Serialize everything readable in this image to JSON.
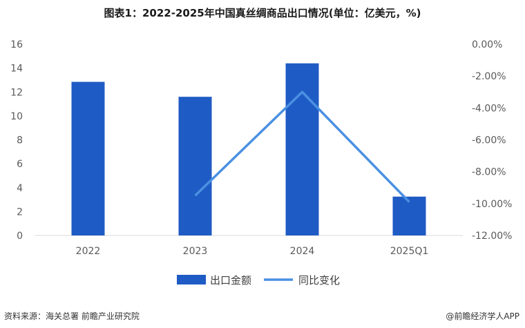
{
  "chart_data": {
    "type": "bar",
    "title": "图表1：2022-2025年中国真丝绸商品出口情况(单位：亿美元，%)",
    "categories": [
      "2022",
      "2023",
      "2024",
      "2025Q1"
    ],
    "series": [
      {
        "name": "出口金额",
        "type": "bar",
        "axis": "left",
        "values": [
          12.85,
          11.6,
          14.4,
          3.25
        ],
        "color": "#1f5bc4"
      },
      {
        "name": "同比变化",
        "type": "line",
        "axis": "right",
        "values": [
          null,
          -9.5,
          -3.0,
          -9.9
        ],
        "color": "#4a90e2"
      }
    ],
    "y_left": {
      "ylim": [
        0,
        16
      ],
      "ticks": [
        "0",
        "2",
        "4",
        "6",
        "8",
        "10",
        "12",
        "14",
        "16"
      ]
    },
    "y_right": {
      "ylim": [
        -12,
        0
      ],
      "ticks": [
        "-12.00%",
        "-10.00%",
        "-8.00%",
        "-6.00%",
        "-4.00%",
        "-2.00%",
        "0.00%"
      ]
    },
    "legend_position": "bottom-center",
    "grid": false
  },
  "footer": {
    "source": "资料来源：海关总署 前瞻产业研究院",
    "brand": "@前瞻经济学人APP"
  }
}
